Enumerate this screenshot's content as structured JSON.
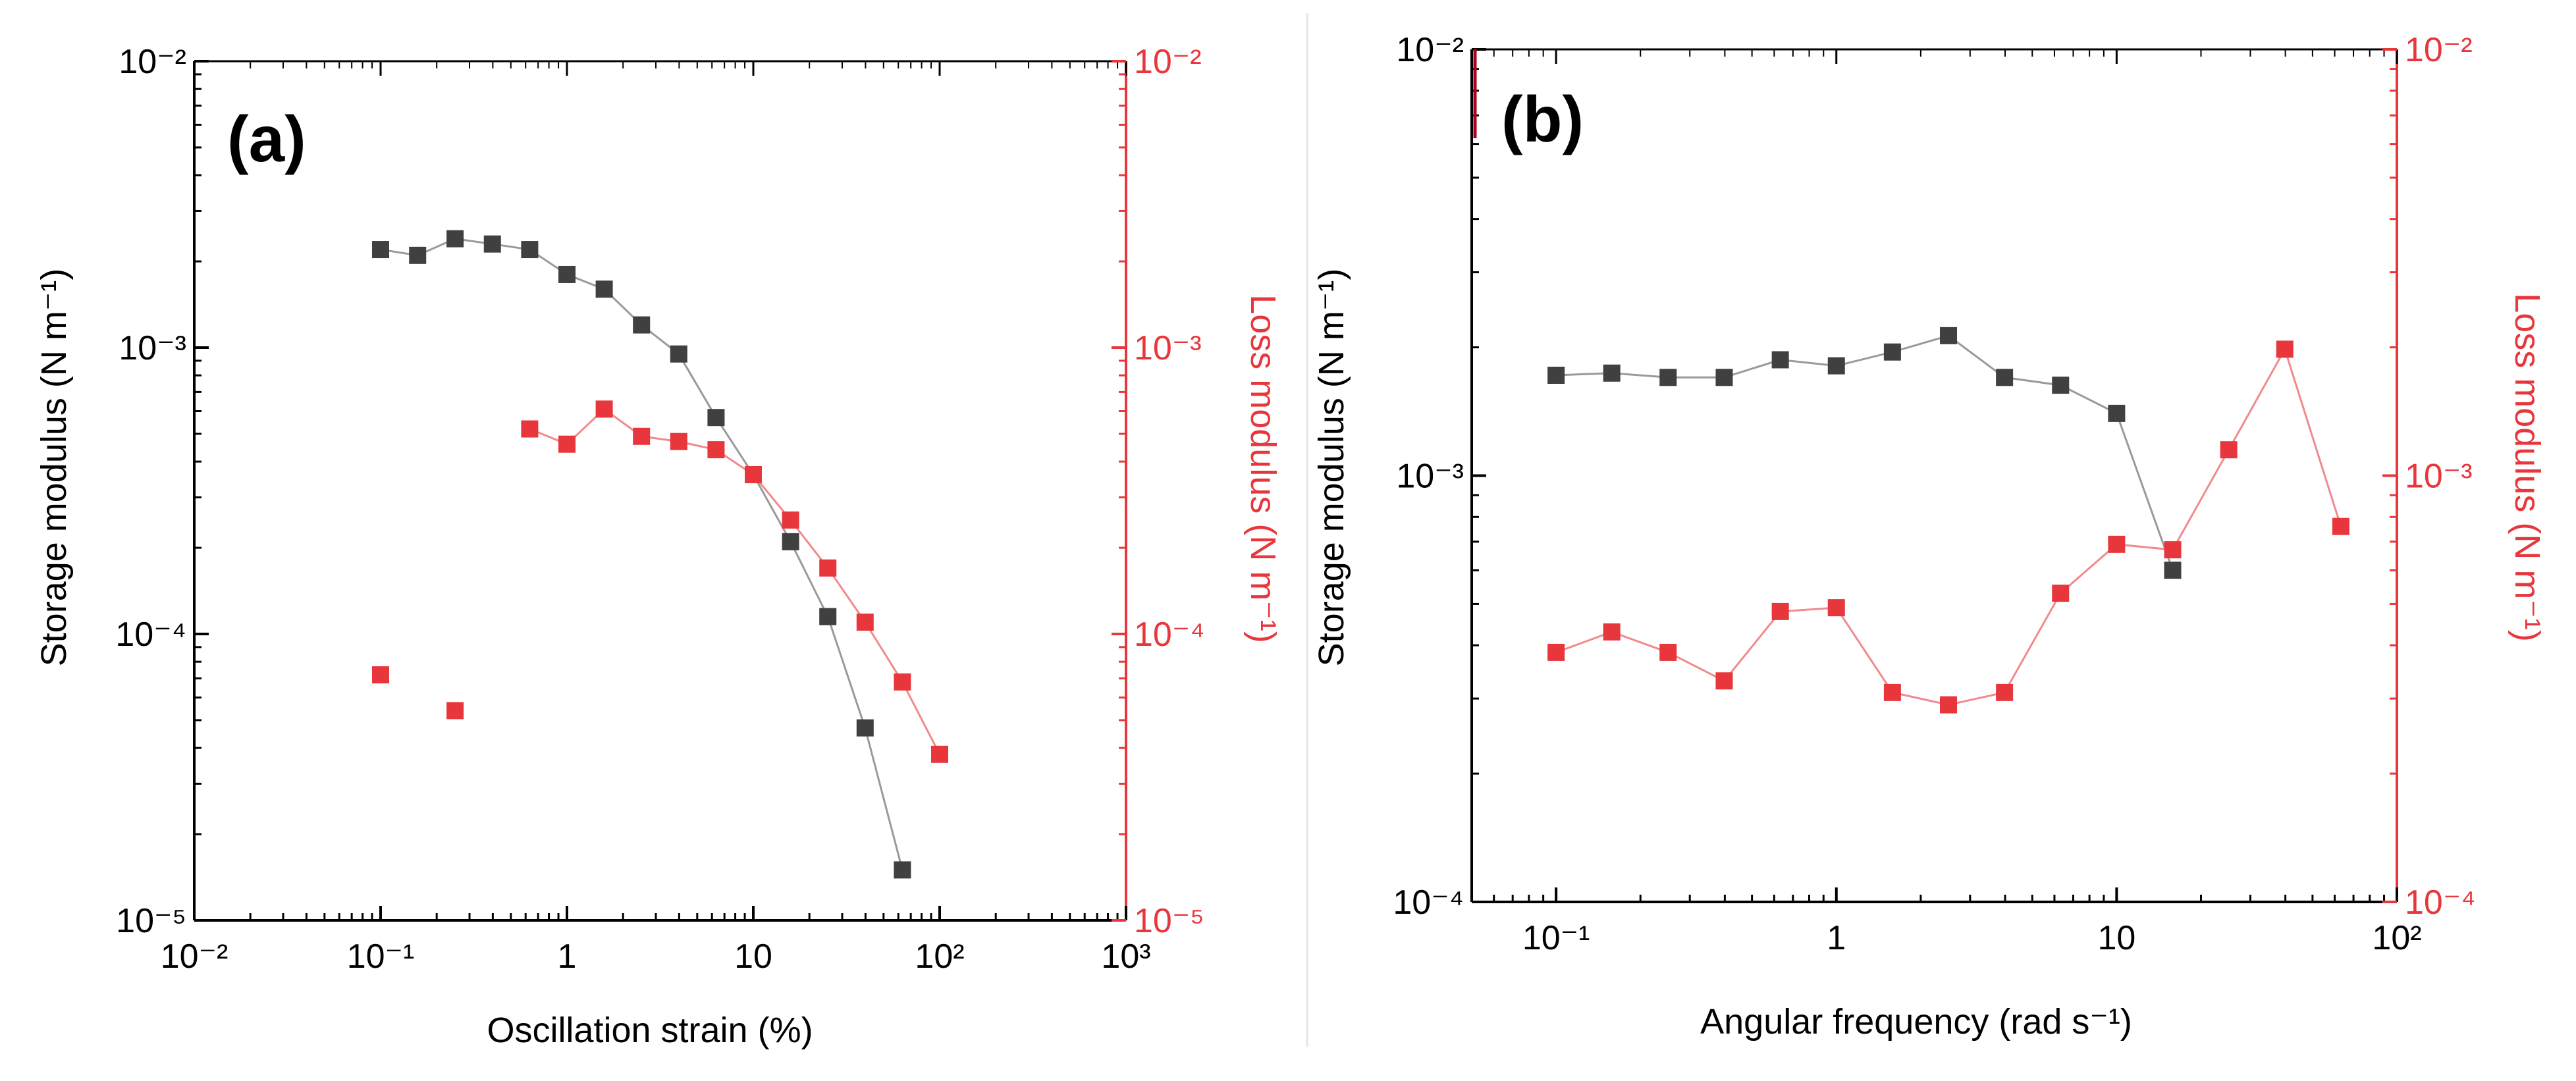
{
  "colors": {
    "storage": "#404040",
    "loss": "#e8373c",
    "axis_black": "#000000",
    "axis_red": "#e8373c"
  },
  "chart_data": [
    {
      "panel": "(a)",
      "type": "scatter",
      "xlabel": "Oscillation strain (%)",
      "ylabel": "Storage modulus (N m⁻¹)",
      "y2label": "Loss modulus (N m⁻¹)",
      "xscale": "log",
      "yscale": "log",
      "y2scale": "log",
      "xlim": [
        0.01,
        1000
      ],
      "ylim": [
        1e-05,
        0.01
      ],
      "y2lim": [
        1e-05,
        0.01
      ],
      "xticks": [
        {
          "label": "10⁻²",
          "value": 0.01
        },
        {
          "label": "10⁻¹",
          "value": 0.1
        },
        {
          "label": "1",
          "value": 1
        },
        {
          "label": "10",
          "value": 10
        },
        {
          "label": "10²",
          "value": 100
        },
        {
          "label": "10³",
          "value": 1000
        }
      ],
      "yticks": [
        {
          "label": "10⁻²",
          "value": 0.01
        },
        {
          "label": "10⁻³",
          "value": 0.001
        },
        {
          "label": "10⁻⁴",
          "value": 0.0001
        },
        {
          "label": "10⁻⁵",
          "value": 1e-05
        }
      ],
      "y2ticks": [
        {
          "label": "10⁻²",
          "value": 0.01
        },
        {
          "label": "10⁻³",
          "value": 0.001
        },
        {
          "label": "10⁻⁴",
          "value": 0.0001
        },
        {
          "label": "10⁻⁵",
          "value": 1e-05
        }
      ],
      "series": [
        {
          "name": "Storage modulus",
          "axis": "left",
          "color": "#404040",
          "connected": true,
          "x": [
            0.1,
            0.158,
            0.251,
            0.398,
            0.631,
            1.0,
            1.585,
            2.512,
            3.981,
            6.31,
            10.0,
            15.85,
            25.12,
            39.81,
            63.1
          ],
          "y": [
            0.0022,
            0.0021,
            0.0024,
            0.0023,
            0.0022,
            0.0018,
            0.0016,
            0.0012,
            0.00095,
            0.00057,
            0.00036,
            0.00021,
            0.000115,
            4.7e-05,
            1.5e-05
          ]
        },
        {
          "name": "Loss modulus",
          "axis": "right",
          "color": "#e8373c",
          "connected": false,
          "x": [
            0.1,
            0.251
          ],
          "y": [
            7.2e-05,
            5.4e-05
          ]
        },
        {
          "name": "Loss modulus",
          "axis": "right",
          "color": "#e8373c",
          "connected": true,
          "x": [
            0.631,
            1.0,
            1.585,
            2.512,
            3.981,
            6.31,
            10.0,
            15.85,
            25.12,
            39.81,
            63.1,
            100.0
          ],
          "y": [
            0.00052,
            0.00046,
            0.00061,
            0.00049,
            0.00047,
            0.00044,
            0.00036,
            0.00025,
            0.00017,
            0.00011,
            6.8e-05,
            3.8e-05
          ]
        }
      ]
    },
    {
      "panel": "(b)",
      "type": "scatter",
      "xlabel": "Angular frequency (rad s⁻¹)",
      "ylabel": "Storage modulus (N m⁻¹)",
      "y2label": "Loss modulus (N m⁻¹)",
      "xscale": "log",
      "yscale": "log",
      "y2scale": "log",
      "xlim": [
        0.05,
        100
      ],
      "ylim": [
        0.0001,
        0.01
      ],
      "y2lim": [
        0.0001,
        0.01
      ],
      "xticks": [
        {
          "label": "10⁻¹",
          "value": 0.1
        },
        {
          "label": "1",
          "value": 1
        },
        {
          "label": "10",
          "value": 10
        },
        {
          "label": "10²",
          "value": 100
        }
      ],
      "yticks": [
        {
          "label": "10⁻²",
          "value": 0.01
        },
        {
          "label": "10⁻³",
          "value": 0.001
        },
        {
          "label": "10⁻⁴",
          "value": 0.0001
        }
      ],
      "y2ticks": [
        {
          "label": "10⁻²",
          "value": 0.01
        },
        {
          "label": "10⁻³",
          "value": 0.001
        },
        {
          "label": "10⁻⁴",
          "value": 0.0001
        }
      ],
      "series": [
        {
          "name": "Storage modulus",
          "axis": "left",
          "color": "#404040",
          "connected": true,
          "x": [
            0.1,
            0.158,
            0.251,
            0.398,
            0.631,
            1.0,
            1.585,
            2.512,
            3.981,
            6.31,
            10.0,
            15.85
          ],
          "y": [
            0.00172,
            0.00174,
            0.0017,
            0.0017,
            0.00187,
            0.00181,
            0.00195,
            0.00213,
            0.0017,
            0.00163,
            0.0014,
            0.0006
          ]
        },
        {
          "name": "Loss modulus",
          "axis": "right",
          "color": "#e8373c",
          "connected": true,
          "x": [
            0.1,
            0.158,
            0.251,
            0.398,
            0.631,
            1.0,
            1.585,
            2.512,
            3.981,
            6.31,
            10.0,
            15.85,
            25.12,
            39.81,
            63.1
          ],
          "y": [
            0.000385,
            0.00043,
            0.000385,
            0.00033,
            0.00048,
            0.00049,
            0.00031,
            0.00029,
            0.00031,
            0.00053,
            0.00069,
            0.00067,
            0.00115,
            0.00198,
            0.00076
          ]
        }
      ]
    }
  ]
}
